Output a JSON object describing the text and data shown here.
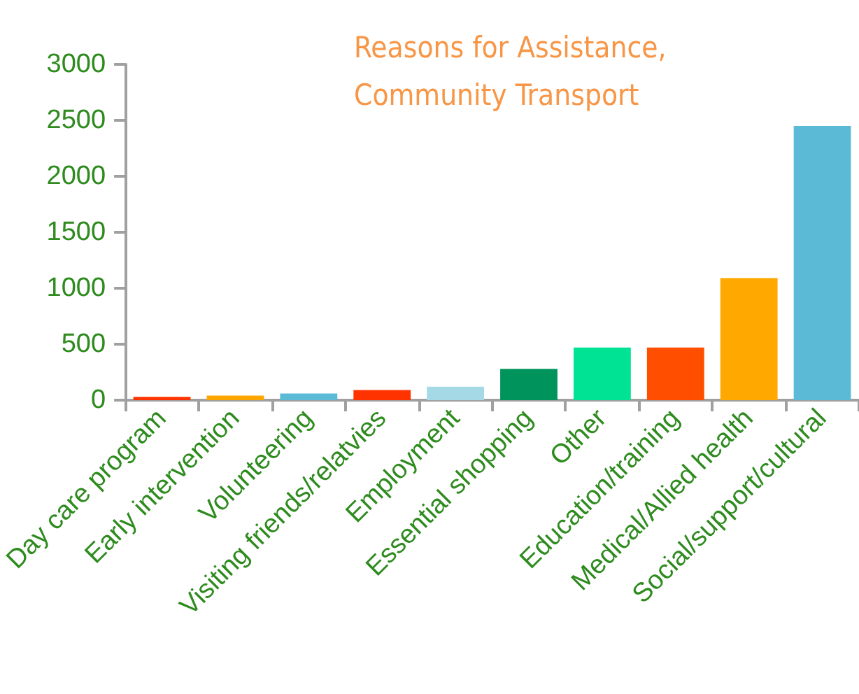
{
  "chart_data": {
    "type": "bar",
    "title": "Reasons for Assistance,\nCommunity Transport",
    "categories": [
      "Day care program",
      "Early intervention",
      "Volunteering",
      "Visiting friends/relatvies",
      "Employment",
      "Essential shopping",
      "Other",
      "Education/training",
      "Medical/Allied health",
      "Social/support/cultural"
    ],
    "values": [
      30,
      40,
      60,
      90,
      120,
      280,
      470,
      470,
      1090,
      2450
    ],
    "colors": [
      "#ff3300",
      "#ffa500",
      "#5bbad5",
      "#ff3300",
      "#a6d9e6",
      "#00945c",
      "#00e394",
      "#ff4e00",
      "#ffa800",
      "#5bbad5"
    ],
    "ylim": [
      0,
      3000
    ],
    "yticks": [
      0,
      500,
      1000,
      1500,
      2000,
      2500,
      3000
    ],
    "grid": false
  }
}
